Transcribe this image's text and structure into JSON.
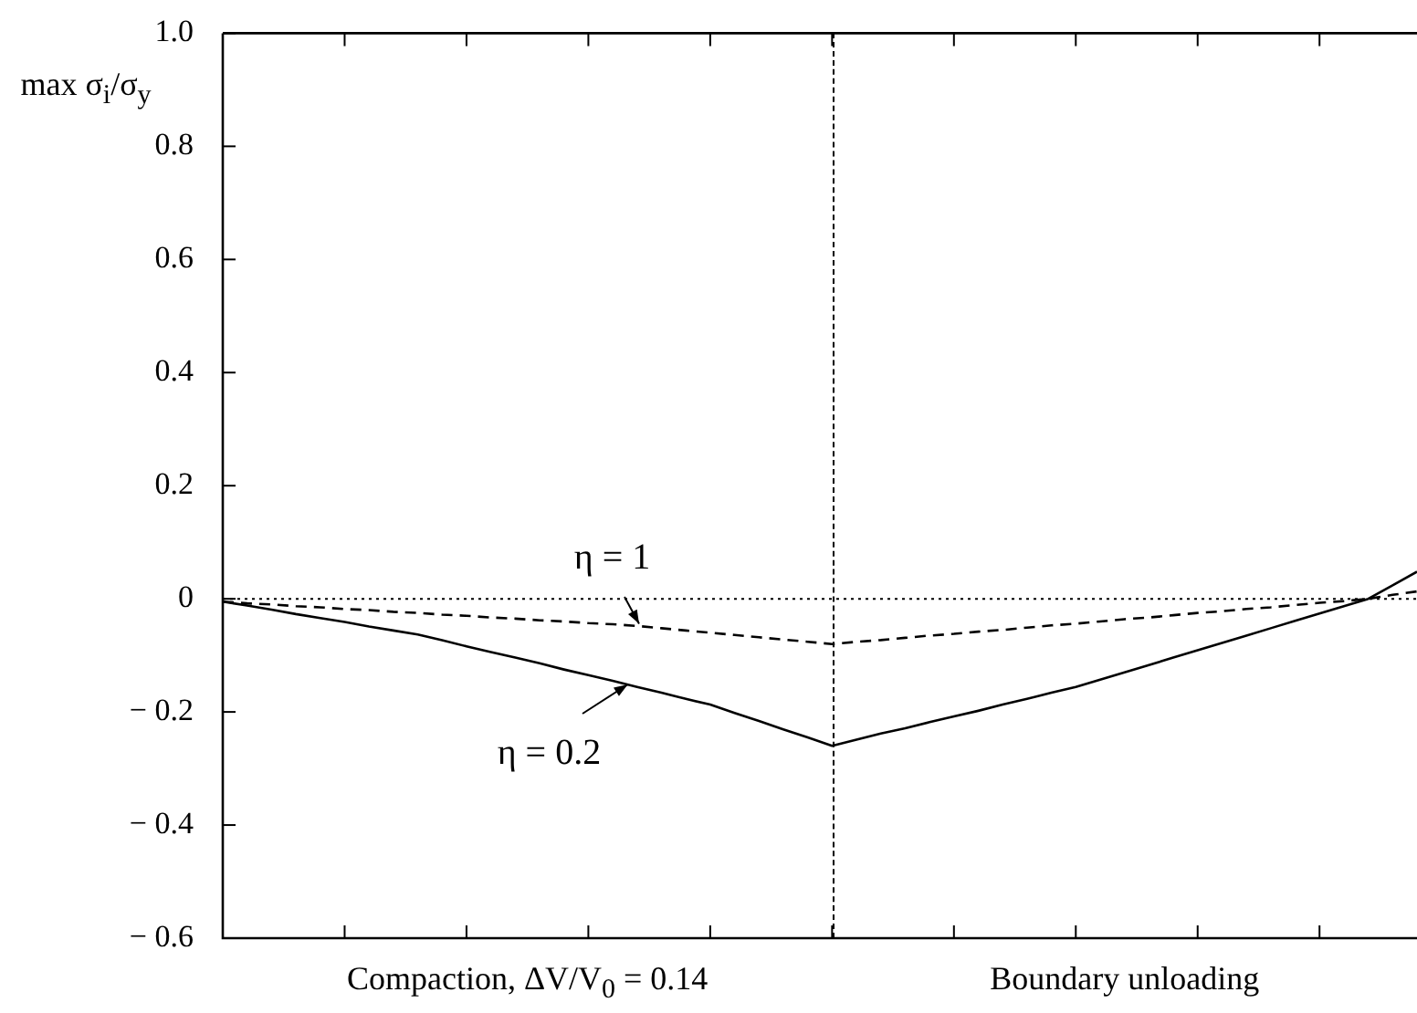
{
  "chart_data": {
    "type": "line",
    "ylabel": "max σ$_{i}$/σ$_{y}$",
    "categories": [
      null,
      null,
      null,
      null,
      null,
      null,
      null,
      null,
      null,
      null,
      null,
      null,
      null,
      null,
      null,
      null,
      null,
      null,
      null,
      null,
      null,
      null,
      null,
      null,
      null,
      null,
      null,
      null,
      null,
      null,
      null,
      null,
      null,
      null,
      null,
      null,
      null,
      null,
      null,
      null,
      null,
      null,
      null,
      null,
      null,
      null,
      null,
      null,
      null,
      null
    ],
    "ylim": [
      -0.6,
      1.0
    ],
    "yticks": [
      {
        "value": -0.6,
        "label": "− 0.6"
      },
      {
        "value": -0.4,
        "label": "− 0.4"
      },
      {
        "value": -0.2,
        "label": "− 0.2"
      },
      0,
      0.2,
      0.4,
      0.6,
      0.8,
      {
        "value": 1.0,
        "label": "1.0"
      }
    ],
    "tick_labels": "y",
    "grid": false,
    "legend": false,
    "marker": "none",
    "series": [
      {
        "color": "#000000",
        "line_style": "dashed",
        "values": [
          -0.005,
          -0.008,
          -0.01,
          -0.013,
          -0.015,
          -0.018,
          -0.02,
          -0.023,
          -0.025,
          -0.028,
          -0.03,
          -0.033,
          -0.035,
          -0.038,
          -0.04,
          -0.043,
          -0.045,
          -0.048,
          -0.052,
          -0.056,
          -0.06,
          -0.064,
          -0.068,
          -0.072,
          -0.076,
          -0.08,
          -0.076,
          -0.073,
          -0.069,
          -0.065,
          -0.062,
          -0.058,
          -0.055,
          -0.051,
          -0.047,
          -0.044,
          -0.04,
          -0.036,
          -0.033,
          -0.029,
          -0.025,
          -0.022,
          -0.018,
          -0.015,
          -0.011,
          -0.007,
          -0.004,
          0,
          0.007,
          0.013
        ]
      },
      {
        "color": "#000000",
        "line_style": "solid",
        "values": [
          -0.005,
          -0.012,
          -0.019,
          -0.027,
          -0.034,
          -0.041,
          -0.049,
          -0.056,
          -0.063,
          -0.073,
          -0.084,
          -0.094,
          -0.104,
          -0.114,
          -0.125,
          -0.135,
          -0.145,
          -0.156,
          -0.166,
          -0.177,
          -0.187,
          -0.202,
          -0.216,
          -0.231,
          -0.245,
          -0.26,
          -0.249,
          -0.238,
          -0.229,
          -0.218,
          -0.208,
          -0.198,
          -0.187,
          -0.177,
          -0.166,
          -0.156,
          -0.143,
          -0.13,
          -0.117,
          -0.104,
          -0.091,
          -0.078,
          -0.065,
          -0.052,
          -0.039,
          -0.026,
          -0.013,
          0,
          0.024,
          0.048
        ]
      }
    ],
    "ref_lines": [
      {
        "axis": "y",
        "value": 0,
        "line_style": "dotted",
        "color": "#000000"
      }
    ],
    "annotations": [
      {
        "text": "η = 1",
        "y": -0.045
      },
      "η = 0.2",
      "Compaction,  ΔV/V$_{0}$ = 0.14",
      "Boundary unloading"
    ]
  }
}
